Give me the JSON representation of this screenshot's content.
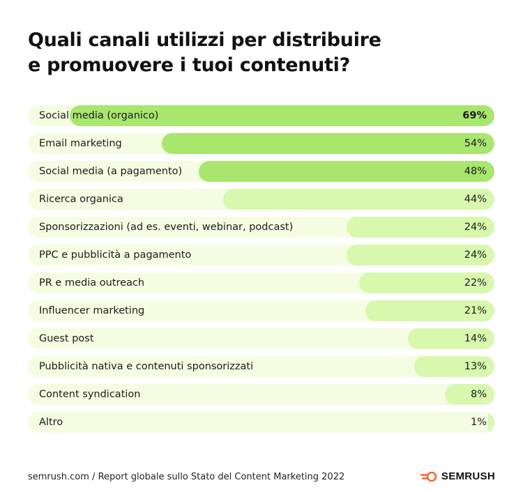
{
  "header": {
    "title_line1": "Quali canali utilizzi per distribuire",
    "title_line2": "e promuovere i tuoi contenuti?"
  },
  "chart_data": {
    "type": "bar",
    "orientation": "horizontal",
    "categories": [
      "Social media (organico)",
      "Email marketing",
      "Social media (a pagamento)",
      "Ricerca organica",
      "Sponsorizzazioni (ad es. eventi, webinar, podcast)",
      "PPC e pubblicità a pagamento",
      "PR e media outreach",
      "Influencer marketing",
      "Guest post",
      "Pubblicità nativa e contenuti sponsorizzati",
      "Content syndication",
      "Altro"
    ],
    "values": [
      69,
      54,
      48,
      44,
      24,
      24,
      22,
      21,
      14,
      13,
      8,
      1
    ],
    "value_labels": [
      "69%",
      "54%",
      "48%",
      "44%",
      "24%",
      "24%",
      "22%",
      "21%",
      "14%",
      "13%",
      "8%",
      "1%"
    ],
    "xlim": [
      0,
      100
    ],
    "grid": false,
    "legend": "none"
  },
  "colors": {
    "track": "#f4fde1",
    "bar_top": "#a8e66e",
    "bar_other": "#d7f8ad",
    "logo_accent": "#ff642d"
  },
  "footer": {
    "source": "semrush.com / Report globale sullo Stato del Content Marketing 2022",
    "logo_text": "SEMRUSH"
  }
}
